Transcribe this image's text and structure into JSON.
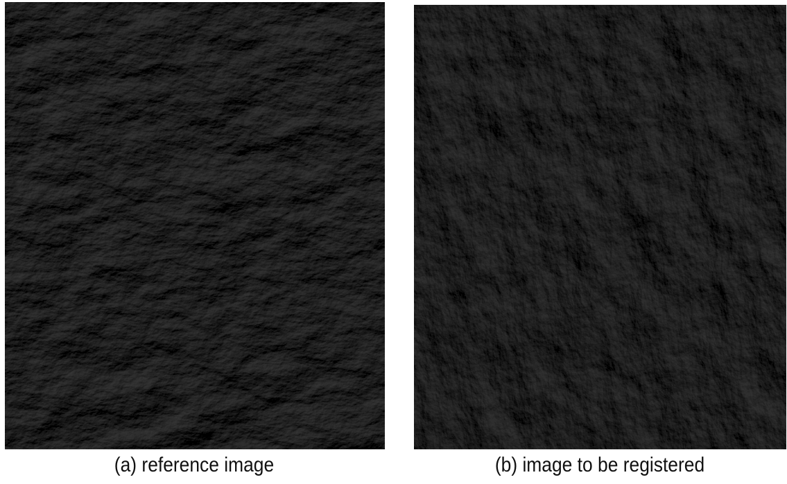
{
  "figures": [
    {
      "caption": "(a) reference image"
    },
    {
      "caption": "(b) image to be registered"
    }
  ]
}
